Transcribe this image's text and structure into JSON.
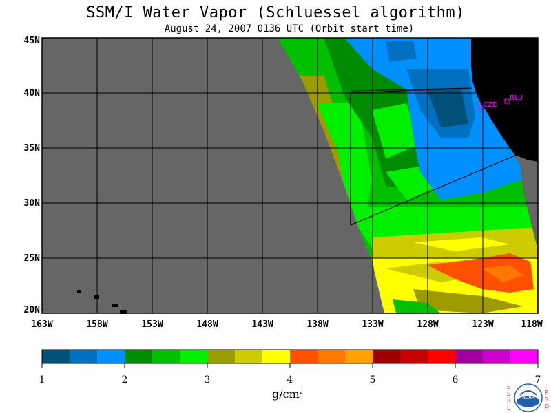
{
  "title": "SSM/I Water Vapor (Schluessel algorithm)",
  "subtitle": "August 24, 2007  0136 UTC  (Orbit start time)",
  "lat_labels": [
    "45N",
    "40N",
    "35N",
    "30N",
    "25N",
    "20N"
  ],
  "lon_labels": [
    "163W",
    "158W",
    "153W",
    "148W",
    "143W",
    "138W",
    "133W",
    "128W",
    "123W",
    "118W"
  ],
  "colorbar": {
    "ticks": [
      "1",
      "2",
      "3",
      "4",
      "5",
      "6",
      "7"
    ],
    "units_base": "g/cm",
    "units_exp": "2",
    "colors": [
      "#00527a",
      "#0070c0",
      "#0090ff",
      "#008c00",
      "#00c000",
      "#00f000",
      "#9c9c00",
      "#cccc00",
      "#ffff00",
      "#ff5000",
      "#ff7800",
      "#ffa000",
      "#a00000",
      "#c80000",
      "#ff0000",
      "#a000a0",
      "#cc00cc",
      "#ff00ff"
    ]
  },
  "sites": [
    {
      "label": "CZD"
    },
    {
      "label": "BLU"
    }
  ],
  "logo": {
    "left_letters": "E S R L",
    "right_letters": "P S D",
    "name": "NOAA"
  },
  "colors": {
    "ocean_missing": "#666666",
    "land": "#000000",
    "frame": "#000000",
    "site_marker": "#ff00ff"
  }
}
